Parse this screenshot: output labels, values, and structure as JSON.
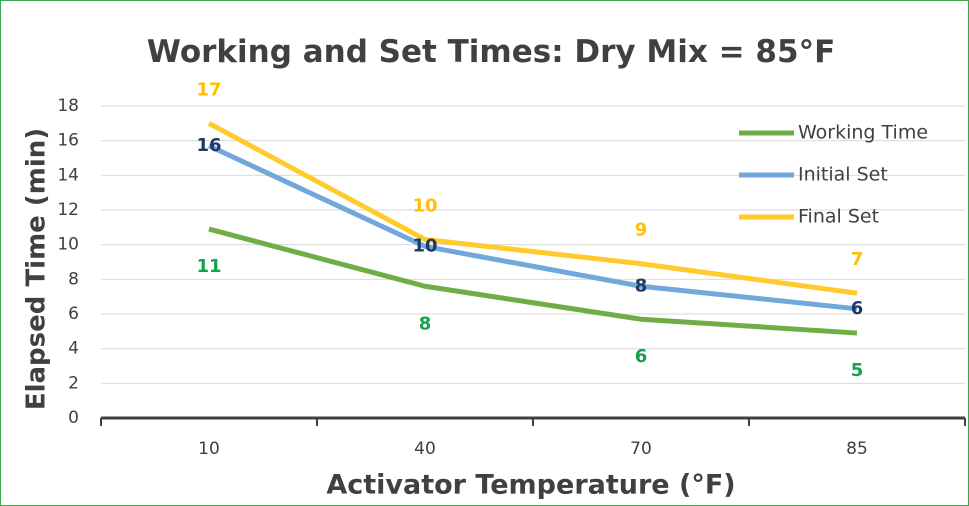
{
  "chart_data": {
    "type": "line",
    "title": "Working and Set Times: Dry Mix  = 85°F",
    "x_label": "Activator Temperature (°F)",
    "y_label": "Elapsed Time (min)",
    "categories": [
      "10",
      "40",
      "70",
      "85"
    ],
    "series": [
      {
        "name": "Working Time",
        "color": "#70ad47",
        "label_color": "#12a24b",
        "values": [
          10.9,
          7.6,
          5.7,
          4.9
        ],
        "value_labels": [
          "11",
          "8",
          "6",
          "5"
        ]
      },
      {
        "name": "Initial Set",
        "color": "#72a7dc",
        "label_color": "#1f3864",
        "values": [
          15.7,
          9.9,
          7.6,
          6.3
        ],
        "value_labels": [
          "16",
          "10",
          "8",
          "6"
        ]
      },
      {
        "name": "Final Set",
        "color": "#ffca2c",
        "label_color": "#ffc000",
        "values": [
          17.0,
          10.3,
          8.9,
          7.2
        ],
        "value_labels": [
          "17",
          "10",
          "9",
          "7"
        ]
      }
    ],
    "ylim": [
      0,
      18
    ],
    "yticks": [
      0,
      2,
      4,
      6,
      8,
      10,
      12,
      14,
      16,
      18
    ],
    "grid": true,
    "legend": "upper right"
  }
}
